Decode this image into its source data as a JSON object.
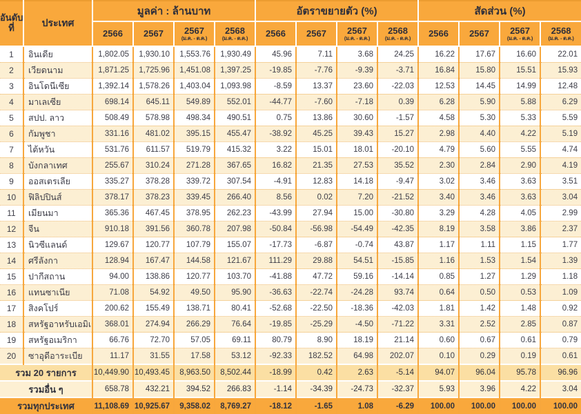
{
  "table": {
    "header": {
      "rank_label": "อันดับ\nที่",
      "country_label": "ประเทศ",
      "groups": [
        "มูลค่า : ล้านบาท",
        "อัตราขยายตัว (%)",
        "สัดส่วน (%)"
      ],
      "year_cols": [
        {
          "year": "2566",
          "sub": ""
        },
        {
          "year": "2567",
          "sub": ""
        },
        {
          "year": "2567",
          "sub": "(ม.ค. - ต.ค.)"
        },
        {
          "year": "2568",
          "sub": "(ม.ค. - ต.ค.)"
        },
        {
          "year": "2566",
          "sub": ""
        },
        {
          "year": "2567",
          "sub": ""
        },
        {
          "year": "2567",
          "sub": "(ม.ค. - ต.ค.)"
        },
        {
          "year": "2568",
          "sub": "(ม.ค. - ต.ค.)"
        },
        {
          "year": "2566",
          "sub": ""
        },
        {
          "year": "2567",
          "sub": ""
        },
        {
          "year": "2567",
          "sub": "(ม.ค. - ต.ค.)"
        },
        {
          "year": "2568",
          "sub": "(ม.ค. - ต.ค.)"
        }
      ]
    },
    "rows": [
      {
        "rank": "1",
        "country": "อินเดีย",
        "values": [
          "1,802.05",
          "1,930.10",
          "1,553.76",
          "1,930.49"
        ],
        "growth": [
          "45.96",
          "7.11",
          "3.68",
          "24.25"
        ],
        "share": [
          "16.22",
          "17.67",
          "16.60",
          "22.01"
        ]
      },
      {
        "rank": "2",
        "country": "เวียดนาม",
        "values": [
          "1,871.25",
          "1,725.96",
          "1,451.08",
          "1,397.25"
        ],
        "growth": [
          "-19.85",
          "-7.76",
          "-9.39",
          "-3.71"
        ],
        "share": [
          "16.84",
          "15.80",
          "15.51",
          "15.93"
        ]
      },
      {
        "rank": "3",
        "country": "อินโดนีเซีย",
        "values": [
          "1,392.14",
          "1,578.26",
          "1,403.04",
          "1,093.98"
        ],
        "growth": [
          "-8.59",
          "13.37",
          "23.60",
          "-22.03"
        ],
        "share": [
          "12.53",
          "14.45",
          "14.99",
          "12.48"
        ]
      },
      {
        "rank": "4",
        "country": "มาเลเซีย",
        "values": [
          "698.14",
          "645.11",
          "549.89",
          "552.01"
        ],
        "growth": [
          "-44.77",
          "-7.60",
          "-7.18",
          "0.39"
        ],
        "share": [
          "6.28",
          "5.90",
          "5.88",
          "6.29"
        ]
      },
      {
        "rank": "5",
        "country": "สปป. ลาว",
        "values": [
          "508.49",
          "578.98",
          "498.34",
          "490.51"
        ],
        "growth": [
          "0.75",
          "13.86",
          "30.60",
          "-1.57"
        ],
        "share": [
          "4.58",
          "5.30",
          "5.33",
          "5.59"
        ]
      },
      {
        "rank": "6",
        "country": "กัมพูชา",
        "values": [
          "331.16",
          "481.02",
          "395.15",
          "455.47"
        ],
        "growth": [
          "-38.92",
          "45.25",
          "39.43",
          "15.27"
        ],
        "share": [
          "2.98",
          "4.40",
          "4.22",
          "5.19"
        ]
      },
      {
        "rank": "7",
        "country": "ไต้หวัน",
        "values": [
          "531.76",
          "611.57",
          "519.79",
          "415.32"
        ],
        "growth": [
          "3.22",
          "15.01",
          "18.01",
          "-20.10"
        ],
        "share": [
          "4.79",
          "5.60",
          "5.55",
          "4.74"
        ]
      },
      {
        "rank": "8",
        "country": "บังกลาเทศ",
        "values": [
          "255.67",
          "310.24",
          "271.28",
          "367.65"
        ],
        "growth": [
          "16.82",
          "21.35",
          "27.53",
          "35.52"
        ],
        "share": [
          "2.30",
          "2.84",
          "2.90",
          "4.19"
        ]
      },
      {
        "rank": "9",
        "country": "ออสเตรเลีย",
        "values": [
          "335.27",
          "378.28",
          "339.72",
          "307.54"
        ],
        "growth": [
          "-4.91",
          "12.83",
          "14.18",
          "-9.47"
        ],
        "share": [
          "3.02",
          "3.46",
          "3.63",
          "3.51"
        ]
      },
      {
        "rank": "10",
        "country": "ฟิลิปปินส์",
        "values": [
          "378.17",
          "378.23",
          "339.45",
          "266.40"
        ],
        "growth": [
          "8.56",
          "0.02",
          "7.20",
          "-21.52"
        ],
        "share": [
          "3.40",
          "3.46",
          "3.63",
          "3.04"
        ]
      },
      {
        "rank": "11",
        "country": "เมียนมา",
        "values": [
          "365.36",
          "467.45",
          "378.95",
          "262.23"
        ],
        "growth": [
          "-43.99",
          "27.94",
          "15.00",
          "-30.80"
        ],
        "share": [
          "3.29",
          "4.28",
          "4.05",
          "2.99"
        ]
      },
      {
        "rank": "12",
        "country": "จีน",
        "values": [
          "910.18",
          "391.56",
          "360.78",
          "207.98"
        ],
        "growth": [
          "-50.84",
          "-56.98",
          "-54.49",
          "-42.35"
        ],
        "share": [
          "8.19",
          "3.58",
          "3.86",
          "2.37"
        ]
      },
      {
        "rank": "13",
        "country": "นิวซีแลนด์",
        "values": [
          "129.67",
          "120.77",
          "107.79",
          "155.07"
        ],
        "growth": [
          "-17.73",
          "-6.87",
          "-0.74",
          "43.87"
        ],
        "share": [
          "1.17",
          "1.11",
          "1.15",
          "1.77"
        ]
      },
      {
        "rank": "14",
        "country": "ศรีลังกา",
        "values": [
          "128.94",
          "167.47",
          "144.58",
          "121.67"
        ],
        "growth": [
          "111.29",
          "29.88",
          "54.51",
          "-15.85"
        ],
        "share": [
          "1.16",
          "1.53",
          "1.54",
          "1.39"
        ]
      },
      {
        "rank": "15",
        "country": "ปากีสถาน",
        "values": [
          "94.00",
          "138.86",
          "120.77",
          "103.70"
        ],
        "growth": [
          "-41.88",
          "47.72",
          "59.16",
          "-14.14"
        ],
        "share": [
          "0.85",
          "1.27",
          "1.29",
          "1.18"
        ]
      },
      {
        "rank": "16",
        "country": "แทนซาเนีย",
        "values": [
          "71.08",
          "54.92",
          "49.50",
          "95.90"
        ],
        "growth": [
          "-36.63",
          "-22.74",
          "-24.28",
          "93.74"
        ],
        "share": [
          "0.64",
          "0.50",
          "0.53",
          "1.09"
        ]
      },
      {
        "rank": "17",
        "country": "สิงคโปร์",
        "values": [
          "200.62",
          "155.49",
          "138.71",
          "80.41"
        ],
        "growth": [
          "-52.68",
          "-22.50",
          "-18.36",
          "-42.03"
        ],
        "share": [
          "1.81",
          "1.42",
          "1.48",
          "0.92"
        ]
      },
      {
        "rank": "18",
        "country": "สหรัฐอาหรับเอมิเรตส์",
        "values": [
          "368.01",
          "274.94",
          "266.29",
          "76.64"
        ],
        "growth": [
          "-19.85",
          "-25.29",
          "-4.50",
          "-71.22"
        ],
        "share": [
          "3.31",
          "2.52",
          "2.85",
          "0.87"
        ]
      },
      {
        "rank": "19",
        "country": "สหรัฐอเมริกา",
        "values": [
          "66.76",
          "72.70",
          "57.05",
          "69.11"
        ],
        "growth": [
          "80.79",
          "8.90",
          "18.19",
          "21.14"
        ],
        "share": [
          "0.60",
          "0.67",
          "0.61",
          "0.79"
        ]
      },
      {
        "rank": "20",
        "country": "ซาอุดีอาระเบีย",
        "values": [
          "11.17",
          "31.55",
          "17.58",
          "53.12"
        ],
        "growth": [
          "-92.33",
          "182.52",
          "64.98",
          "202.07"
        ],
        "share": [
          "0.10",
          "0.29",
          "0.19",
          "0.61"
        ]
      }
    ],
    "footer": [
      {
        "label": "รวม 20 รายการ",
        "values": [
          "10,449.90",
          "10,493.45",
          "8,963.50",
          "8,502.44"
        ],
        "growth": [
          "-18.99",
          "0.42",
          "2.63",
          "-5.14"
        ],
        "share": [
          "94.07",
          "96.04",
          "95.78",
          "96.96"
        ]
      },
      {
        "label": "รวมอื่น ๆ",
        "values": [
          "658.78",
          "432.21",
          "394.52",
          "266.83"
        ],
        "growth": [
          "-1.14",
          "-34.39",
          "-24.73",
          "-32.37"
        ],
        "share": [
          "5.93",
          "3.96",
          "4.22",
          "3.04"
        ]
      },
      {
        "label": "รวมทุกประเทศ",
        "values": [
          "11,108.69",
          "10,925.67",
          "9,358.02",
          "8,769.27"
        ],
        "growth": [
          "-18.12",
          "-1.65",
          "1.08",
          "-6.29"
        ],
        "share": [
          "100.00",
          "100.00",
          "100.00",
          "100.00"
        ]
      }
    ]
  },
  "colors": {
    "header_bg": "#F9A83C",
    "row_alt_bg": "#FCEFD3",
    "total_row_bg": "#FBDFA3",
    "others_row_bg": "#FDF0D3",
    "grand_row_bg": "#F9A83C",
    "grid_line": "#F7A73D",
    "dotted_line": "#EDB360",
    "text": "#3D3D48"
  }
}
